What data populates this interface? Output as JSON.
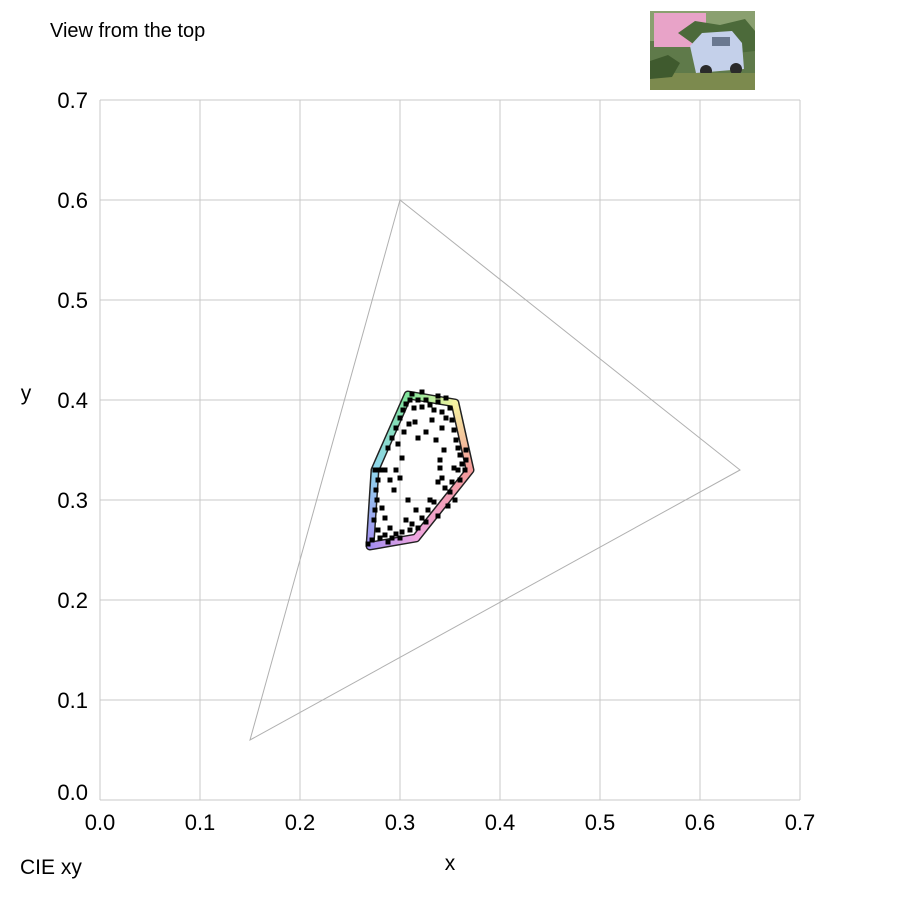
{
  "header": {
    "view_title": "View from the top"
  },
  "footer": {
    "color_space_label": "CIE xy"
  },
  "chart_data": {
    "type": "scatter",
    "title": "",
    "xlabel": "x",
    "ylabel": "y",
    "xlim": [
      0.0,
      0.7
    ],
    "ylim": [
      0.0,
      0.7
    ],
    "x_ticks": [
      "0.0",
      "0.1",
      "0.2",
      "0.3",
      "0.4",
      "0.5",
      "0.6",
      "0.7"
    ],
    "y_ticks": [
      "0.0",
      "0.1",
      "0.2",
      "0.3",
      "0.4",
      "0.5",
      "0.6",
      "0.7"
    ],
    "grid": true,
    "gamut_triangle": [
      [
        0.64,
        0.33
      ],
      [
        0.3,
        0.6
      ],
      [
        0.15,
        0.06
      ]
    ],
    "hull": [
      {
        "x": 0.308,
        "y": 0.405,
        "color": "#7fe39a"
      },
      {
        "x": 0.355,
        "y": 0.397,
        "color": "#f5f3a0"
      },
      {
        "x": 0.37,
        "y": 0.33,
        "color": "#f59a9a"
      },
      {
        "x": 0.316,
        "y": 0.262,
        "color": "#f0a6e0"
      },
      {
        "x": 0.27,
        "y": 0.254,
        "color": "#a48ef0"
      },
      {
        "x": 0.275,
        "y": 0.33,
        "color": "#8fd6ee"
      }
    ],
    "points": [
      [
        0.275,
        0.33
      ],
      [
        0.28,
        0.33
      ],
      [
        0.285,
        0.33
      ],
      [
        0.278,
        0.32
      ],
      [
        0.276,
        0.31
      ],
      [
        0.277,
        0.3
      ],
      [
        0.275,
        0.29
      ],
      [
        0.274,
        0.28
      ],
      [
        0.278,
        0.27
      ],
      [
        0.28,
        0.262
      ],
      [
        0.272,
        0.26
      ],
      [
        0.268,
        0.256
      ],
      [
        0.285,
        0.265
      ],
      [
        0.288,
        0.258
      ],
      [
        0.292,
        0.262
      ],
      [
        0.29,
        0.272
      ],
      [
        0.285,
        0.282
      ],
      [
        0.282,
        0.292
      ],
      [
        0.288,
        0.352
      ],
      [
        0.292,
        0.362
      ],
      [
        0.296,
        0.372
      ],
      [
        0.3,
        0.382
      ],
      [
        0.303,
        0.39
      ],
      [
        0.306,
        0.396
      ],
      [
        0.31,
        0.4
      ],
      [
        0.314,
        0.392
      ],
      [
        0.318,
        0.4
      ],
      [
        0.322,
        0.393
      ],
      [
        0.326,
        0.4
      ],
      [
        0.33,
        0.395
      ],
      [
        0.334,
        0.39
      ],
      [
        0.338,
        0.398
      ],
      [
        0.342,
        0.388
      ],
      [
        0.346,
        0.382
      ],
      [
        0.35,
        0.392
      ],
      [
        0.352,
        0.38
      ],
      [
        0.354,
        0.37
      ],
      [
        0.356,
        0.36
      ],
      [
        0.358,
        0.352
      ],
      [
        0.36,
        0.345
      ],
      [
        0.362,
        0.336
      ],
      [
        0.365,
        0.33
      ],
      [
        0.358,
        0.33
      ],
      [
        0.354,
        0.332
      ],
      [
        0.352,
        0.318
      ],
      [
        0.35,
        0.308
      ],
      [
        0.355,
        0.3
      ],
      [
        0.345,
        0.312
      ],
      [
        0.342,
        0.322
      ],
      [
        0.34,
        0.332
      ],
      [
        0.338,
        0.318
      ],
      [
        0.33,
        0.3
      ],
      [
        0.328,
        0.29
      ],
      [
        0.326,
        0.278
      ],
      [
        0.322,
        0.282
      ],
      [
        0.318,
        0.272
      ],
      [
        0.312,
        0.276
      ],
      [
        0.31,
        0.27
      ],
      [
        0.306,
        0.28
      ],
      [
        0.302,
        0.268
      ],
      [
        0.296,
        0.266
      ],
      [
        0.3,
        0.262
      ],
      [
        0.342,
        0.372
      ],
      [
        0.336,
        0.36
      ],
      [
        0.332,
        0.38
      ],
      [
        0.315,
        0.378
      ],
      [
        0.318,
        0.362
      ],
      [
        0.326,
        0.368
      ],
      [
        0.298,
        0.356
      ],
      [
        0.302,
        0.342
      ],
      [
        0.309,
        0.376
      ],
      [
        0.304,
        0.368
      ],
      [
        0.344,
        0.35
      ],
      [
        0.34,
        0.34
      ],
      [
        0.36,
        0.32
      ],
      [
        0.348,
        0.294
      ],
      [
        0.338,
        0.284
      ],
      [
        0.334,
        0.298
      ],
      [
        0.316,
        0.29
      ],
      [
        0.308,
        0.3
      ],
      [
        0.294,
        0.31
      ],
      [
        0.29,
        0.32
      ],
      [
        0.296,
        0.33
      ],
      [
        0.3,
        0.322
      ],
      [
        0.338,
        0.404
      ],
      [
        0.322,
        0.408
      ],
      [
        0.312,
        0.406
      ],
      [
        0.346,
        0.402
      ],
      [
        0.366,
        0.35
      ],
      [
        0.366,
        0.34
      ]
    ]
  }
}
